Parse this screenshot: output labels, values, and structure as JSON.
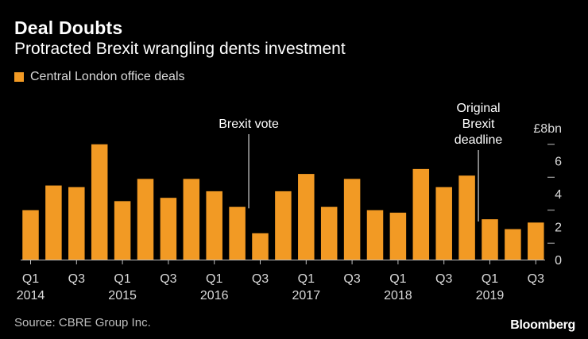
{
  "header": {
    "title": "Deal Doubts",
    "subtitle": "Protracted Brexit wrangling dents investment"
  },
  "legend": {
    "label": "Central London office deals"
  },
  "footer": {
    "source": "Source: CBRE Group Inc.",
    "brand": "Bloomberg"
  },
  "colors": {
    "bar": "#F29A24",
    "background": "#000000",
    "axis": "#bfbfbf"
  },
  "chart_data": {
    "type": "bar",
    "title": "Deal Doubts",
    "subtitle": "Protracted Brexit wrangling dents investment",
    "unit_label": "£8bn",
    "ylabel": "",
    "xlabel": "",
    "ylim": [
      0,
      8
    ],
    "y_ticks": [
      0,
      1,
      2,
      3,
      4,
      5,
      6,
      7,
      8
    ],
    "y_tick_labels": [
      "0",
      "",
      "2",
      "",
      "4",
      "",
      "6",
      "",
      "£8bn"
    ],
    "categories": [
      "2014 Q1",
      "2014 Q2",
      "2014 Q3",
      "2014 Q4",
      "2015 Q1",
      "2015 Q2",
      "2015 Q3",
      "2015 Q4",
      "2016 Q1",
      "2016 Q2",
      "2016 Q3",
      "2016 Q4",
      "2017 Q1",
      "2017 Q2",
      "2017 Q3",
      "2017 Q4",
      "2018 Q1",
      "2018 Q2",
      "2018 Q3",
      "2018 Q4",
      "2019 Q1",
      "2019 Q2",
      "2019 Q3"
    ],
    "series": [
      {
        "name": "Central London office deals",
        "values": [
          3.0,
          4.5,
          4.4,
          7.0,
          3.55,
          4.9,
          3.75,
          4.9,
          4.15,
          3.2,
          1.6,
          4.15,
          5.2,
          3.2,
          4.9,
          3.0,
          2.85,
          5.5,
          4.4,
          5.1,
          2.45,
          1.85,
          2.25
        ]
      }
    ],
    "x_tick_labels": [
      {
        "index": 0,
        "quarter": "Q1",
        "year": "2014"
      },
      {
        "index": 2,
        "quarter": "Q3",
        "year": ""
      },
      {
        "index": 4,
        "quarter": "Q1",
        "year": "2015"
      },
      {
        "index": 6,
        "quarter": "Q3",
        "year": ""
      },
      {
        "index": 8,
        "quarter": "Q1",
        "year": "2016"
      },
      {
        "index": 10,
        "quarter": "Q3",
        "year": ""
      },
      {
        "index": 12,
        "quarter": "Q1",
        "year": "2017"
      },
      {
        "index": 14,
        "quarter": "Q3",
        "year": ""
      },
      {
        "index": 16,
        "quarter": "Q1",
        "year": "2018"
      },
      {
        "index": 18,
        "quarter": "Q3",
        "year": ""
      },
      {
        "index": 20,
        "quarter": "Q1",
        "year": "2019"
      },
      {
        "index": 22,
        "quarter": "Q3",
        "year": ""
      }
    ],
    "annotations": [
      {
        "lines": [
          "Brexit vote"
        ],
        "position": 9.5,
        "tip_value": 3.5
      },
      {
        "lines": [
          "Original",
          "Brexit",
          "deadline"
        ],
        "position": 19.5,
        "tip_value": 2.7
      }
    ],
    "legend": "top-left"
  }
}
